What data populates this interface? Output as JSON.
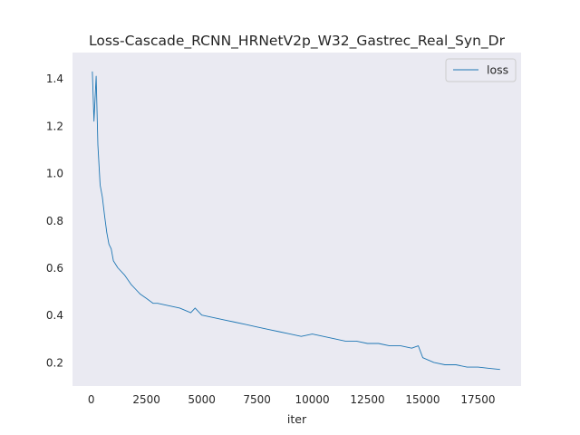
{
  "chart_data": {
    "type": "line",
    "title": "Loss-Cascade_RCNN_HRNetV2p_W32_Gastrec_Real_Syn_Dr",
    "xlabel": "iter",
    "ylabel": "",
    "xlim": [
      -850,
      19450
    ],
    "ylim": [
      0.1,
      1.51
    ],
    "xticks": [
      0,
      2500,
      5000,
      7500,
      10000,
      12500,
      15000,
      17500
    ],
    "xtick_labels": [
      "0",
      "2500",
      "5000",
      "7500",
      "10000",
      "12500",
      "15000",
      "17500"
    ],
    "yticks": [
      0.2,
      0.4,
      0.6,
      0.8,
      1.0,
      1.2,
      1.4
    ],
    "ytick_labels": [
      "0.2",
      "0.4",
      "0.6",
      "0.8",
      "1.0",
      "1.2",
      "1.4"
    ],
    "grid": false,
    "background": "#eaeaf2",
    "legend": {
      "position": "top-right",
      "entries": [
        "loss"
      ]
    },
    "series": [
      {
        "name": "loss",
        "color": "#1f77b4",
        "x": [
          50,
          120,
          220,
          300,
          400,
          500,
          600,
          700,
          800,
          900,
          1000,
          1200,
          1500,
          1800,
          2000,
          2200,
          2500,
          2800,
          3000,
          3500,
          4000,
          4500,
          4700,
          5000,
          5500,
          6000,
          6500,
          7000,
          7500,
          8000,
          8500,
          9000,
          9500,
          10000,
          10500,
          11000,
          11500,
          12000,
          12500,
          13000,
          13500,
          14000,
          14500,
          14800,
          15000,
          15500,
          16000,
          16500,
          17000,
          17500,
          18000,
          18500
        ],
        "y": [
          1.43,
          1.22,
          1.41,
          1.12,
          0.95,
          0.9,
          0.82,
          0.75,
          0.7,
          0.68,
          0.63,
          0.6,
          0.57,
          0.53,
          0.51,
          0.49,
          0.47,
          0.45,
          0.45,
          0.44,
          0.43,
          0.41,
          0.43,
          0.4,
          0.39,
          0.38,
          0.37,
          0.36,
          0.35,
          0.34,
          0.33,
          0.32,
          0.31,
          0.32,
          0.31,
          0.3,
          0.29,
          0.29,
          0.28,
          0.28,
          0.27,
          0.27,
          0.26,
          0.27,
          0.22,
          0.2,
          0.19,
          0.19,
          0.18,
          0.18,
          0.175,
          0.17
        ]
      }
    ]
  }
}
